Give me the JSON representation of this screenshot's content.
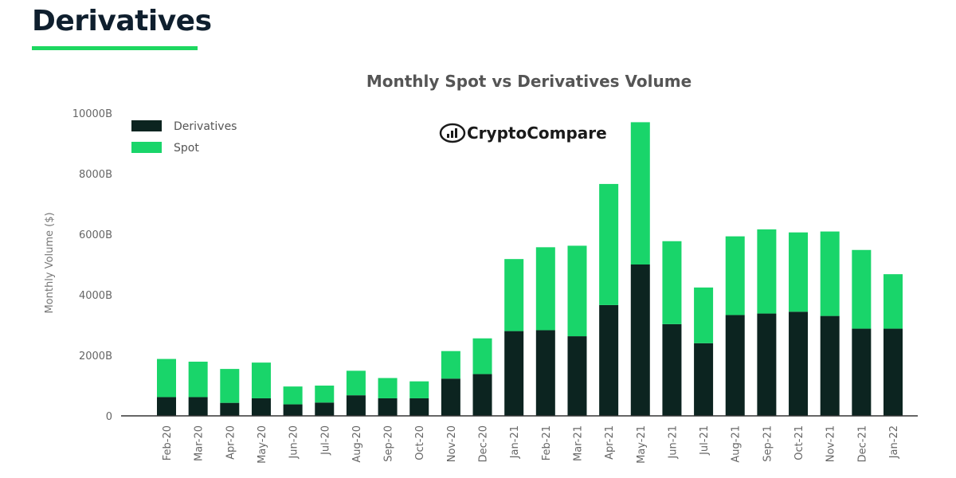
{
  "header": {
    "title": "Derivatives"
  },
  "colors": {
    "accent": "#1ed760",
    "derivatives": "#0c2420",
    "spot": "#19d56a"
  },
  "logo": {
    "name": "cryptocompare-logo-icon",
    "text": "CryptoCompare"
  },
  "chart_data": {
    "type": "bar",
    "stacked": true,
    "title": "Monthly Spot vs Derivatives Volume",
    "xlabel": "",
    "ylabel": "Monthly Volume ($)",
    "ylim": [
      0,
      10000
    ],
    "yticks": [
      "0",
      "2000B",
      "4000B",
      "6000B",
      "8000B",
      "10000B"
    ],
    "yticks_values": [
      0,
      2000,
      4000,
      6000,
      8000,
      10000
    ],
    "grid": false,
    "legend_position": "top-left",
    "categories": [
      "Feb-20",
      "Mar-20",
      "Apr-20",
      "May-20",
      "Jun-20",
      "Jul-20",
      "Aug-20",
      "Sep-20",
      "Oct-20",
      "Nov-20",
      "Dec-20",
      "Jan-21",
      "Feb-21",
      "Mar-21",
      "Apr-21",
      "May-21",
      "Jun-21",
      "Jul-21",
      "Aug-21",
      "Sep-21",
      "Oct-21",
      "Nov-21",
      "Dec-21",
      "Jan-22"
    ],
    "series": [
      {
        "name": "Derivatives",
        "color": "#0c2420",
        "values": [
          620,
          620,
          430,
          580,
          380,
          440,
          680,
          580,
          580,
          1230,
          1380,
          2800,
          2830,
          2630,
          3660,
          5000,
          3030,
          2400,
          3330,
          3380,
          3440,
          3300,
          2880,
          2880
        ]
      },
      {
        "name": "Spot",
        "color": "#19d56a",
        "values": [
          1260,
          1170,
          1120,
          1180,
          590,
          560,
          810,
          670,
          560,
          910,
          1180,
          2380,
          2740,
          2990,
          4000,
          4700,
          2740,
          1840,
          2600,
          2780,
          2620,
          2790,
          2600,
          1800
        ]
      }
    ]
  }
}
